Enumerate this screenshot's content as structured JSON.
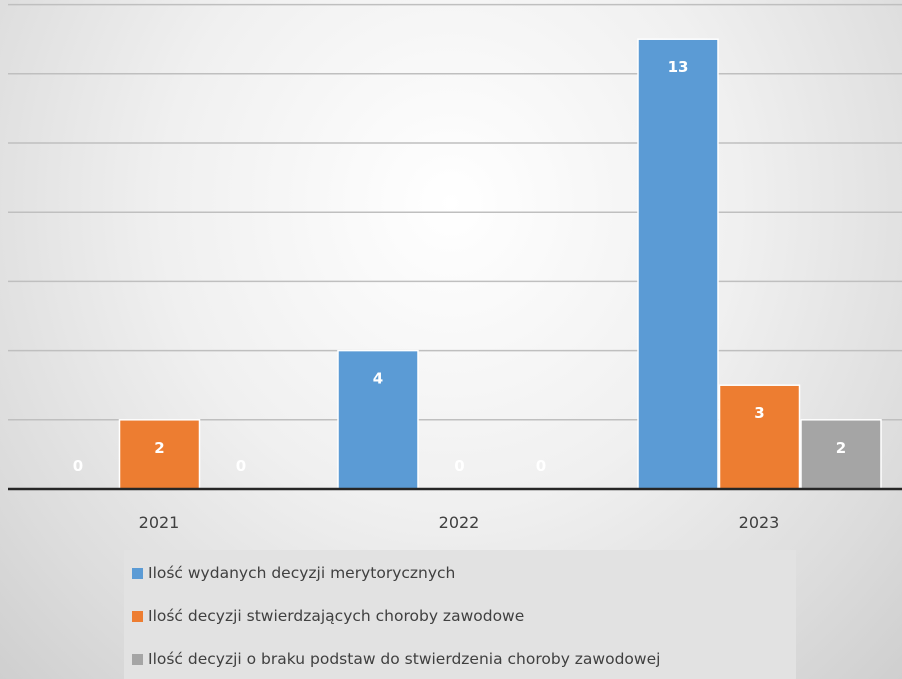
{
  "chart_data": {
    "type": "bar",
    "categories": [
      "2021",
      "2022",
      "2023"
    ],
    "series": [
      {
        "name": "Ilość wydanych decyzji merytorycznych",
        "values": [
          0,
          4,
          13
        ],
        "color": "#5b9bd5"
      },
      {
        "name": "Ilość decyzji stwierdzających choroby zawodowe",
        "values": [
          2,
          0,
          3
        ],
        "color": "#ed7d31"
      },
      {
        "name": "Ilość decyzji o braku podstaw do stwierdzenia choroby zawodowej",
        "values": [
          0,
          0,
          2
        ],
        "color": "#a5a5a5"
      }
    ],
    "title": "",
    "xlabel": "",
    "ylabel": "",
    "ylim": [
      0,
      14
    ],
    "grid": true,
    "data_labels": true,
    "legend_position": "bottom"
  }
}
